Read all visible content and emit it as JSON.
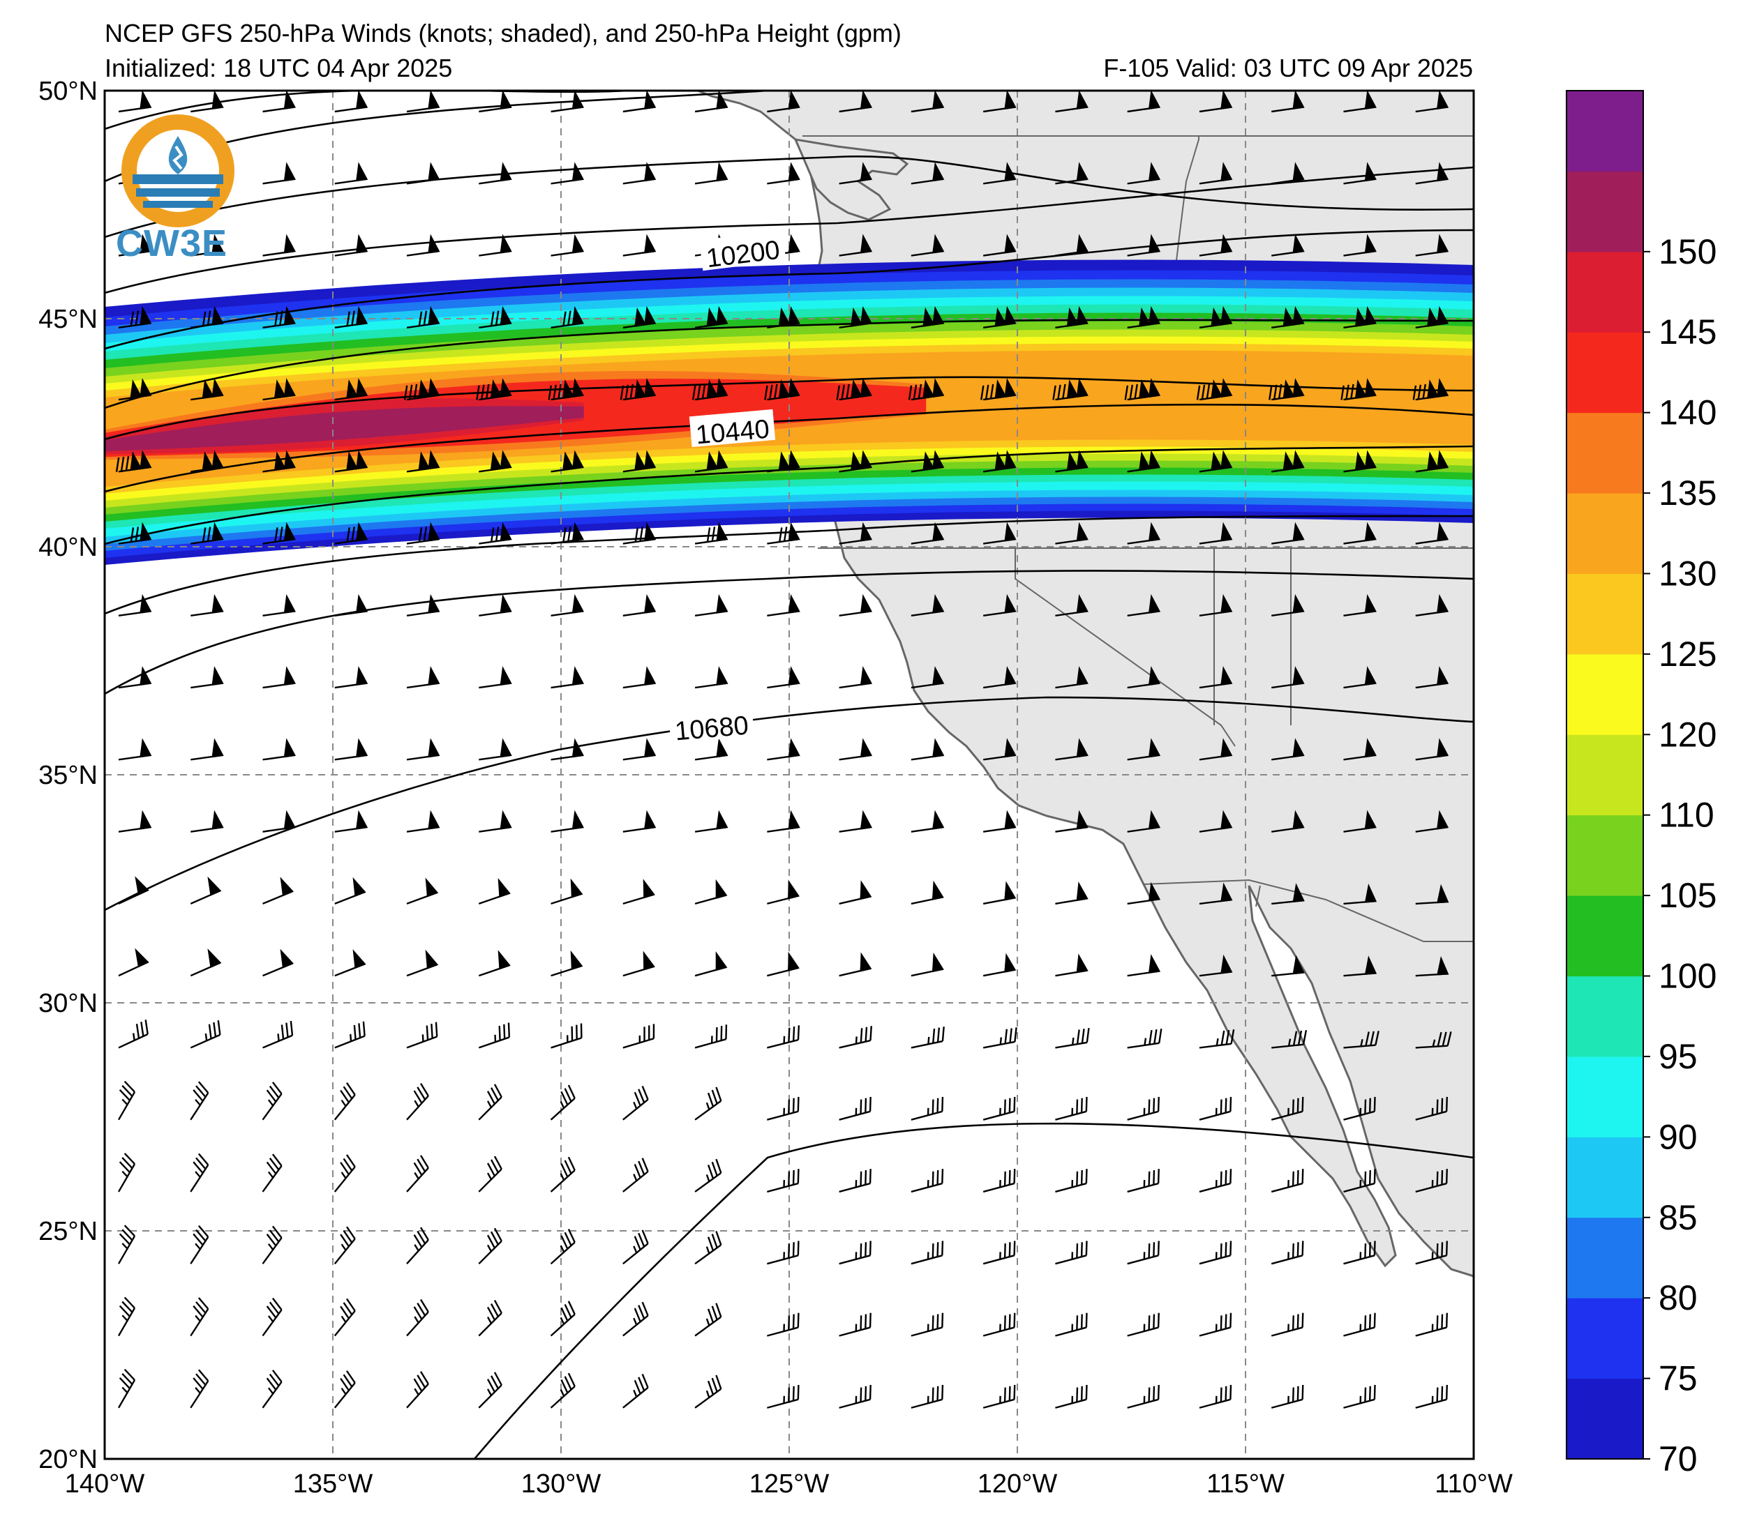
{
  "header": {
    "title": "NCEP GFS 250-hPa Winds (knots; shaded), and 250-hPa Height (gpm)",
    "initialized": "Initialized: 18 UTC 04 Apr 2025",
    "valid": "F-105  Valid: 03 UTC 09 Apr 2025"
  },
  "logo": {
    "text": "CW3E"
  },
  "map": {
    "lon_range": [
      -140,
      -110
    ],
    "lat_range": [
      20,
      50
    ],
    "lon_labels": [
      "140°W",
      "135°W",
      "130°W",
      "125°W",
      "120°W",
      "115°W",
      "110°W"
    ],
    "lat_labels": [
      "50°N",
      "45°N",
      "40°N",
      "35°N",
      "30°N",
      "25°N",
      "20°N"
    ],
    "gridlines": "dashed",
    "land_color": "#e6e6e6",
    "ocean_color": "#ffffff"
  },
  "height_contours": {
    "labels": [
      "10200",
      "10440",
      "10680"
    ]
  },
  "colorbar": {
    "ticks": [
      "70",
      "75",
      "80",
      "85",
      "90",
      "95",
      "100",
      "105",
      "110",
      "120",
      "125",
      "130",
      "135",
      "140",
      "145",
      "150"
    ],
    "colors": [
      "#1a1ac8",
      "#1e32f0",
      "#1e78f0",
      "#1ec8f5",
      "#1ef5f0",
      "#1ee6b4",
      "#22be22",
      "#78d21e",
      "#c8e61e",
      "#fafa1e",
      "#fac81e",
      "#faa51e",
      "#f87a1e",
      "#f5281e",
      "#dc1e32",
      "#a01e5a",
      "#7d1e8c"
    ]
  }
}
